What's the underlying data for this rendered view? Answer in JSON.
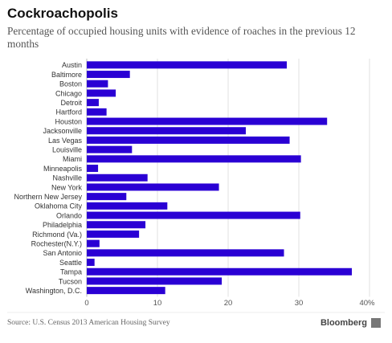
{
  "title": "Cockroachopolis",
  "subtitle": "Percentage of occupied housing units with evidence of roaches in the previous 12 months",
  "source": "Source: U.S. Census 2013 American Housing Survey",
  "brand": "Bloomberg",
  "colors": {
    "bar": "#2a00d4",
    "grid": "#e2e2e2",
    "axis": "#bbbbbb",
    "label": "#333333",
    "tick": "#555555"
  },
  "chart_data": {
    "type": "bar",
    "orientation": "horizontal",
    "categories": [
      "Austin",
      "Baltimore",
      "Boston",
      "Chicago",
      "Detroit",
      "Hartford",
      "Houston",
      "Jacksonville",
      "Las Vegas",
      "Louisville",
      "Miami",
      "Minneapolis",
      "Nashville",
      "New York",
      "Northern New Jersey",
      "Oklahoma City",
      "Orlando",
      "Philadelphia",
      "Richmond (Va.)",
      "Rochester(N.Y.)",
      "San Antonio",
      "Seattle",
      "Tampa",
      "Tucson",
      "Washington, D.C."
    ],
    "values": [
      28.3,
      6.1,
      3.0,
      4.1,
      1.7,
      2.8,
      34.0,
      22.5,
      28.7,
      6.4,
      30.3,
      1.6,
      8.6,
      18.7,
      5.6,
      11.4,
      30.2,
      8.3,
      7.4,
      1.8,
      27.9,
      1.1,
      37.5,
      19.1,
      11.1
    ],
    "xlim": [
      0,
      40
    ],
    "xticks": [
      "0",
      "10",
      "20",
      "30",
      "40%"
    ],
    "grid": true
  }
}
